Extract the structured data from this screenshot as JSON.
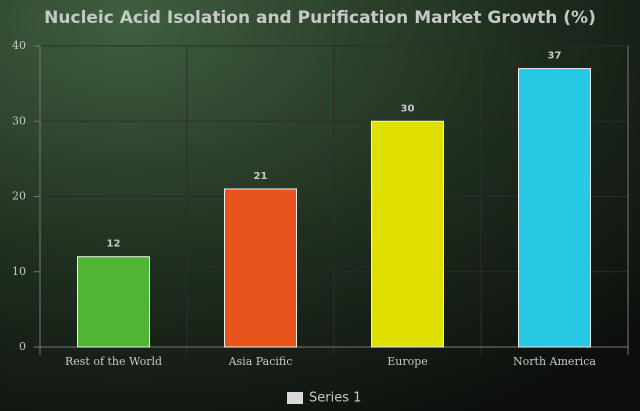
{
  "chart_data": {
    "type": "bar",
    "title": "Nucleic Acid Isolation and Purification Market Growth (%)",
    "categories": [
      "Rest of the World",
      "Asia Pacific",
      "Europe",
      "North America"
    ],
    "series": [
      {
        "name": "Series 1",
        "color": "#d9d9d9",
        "values": [
          12,
          21,
          30,
          37
        ],
        "colors": [
          "#4fb534",
          "#e8541c",
          "#e0e000",
          "#26c8e4"
        ]
      }
    ],
    "ylim": [
      0,
      40
    ],
    "yticks": [
      0,
      10,
      20,
      30,
      40
    ],
    "grid": true,
    "legend": "bottom"
  }
}
